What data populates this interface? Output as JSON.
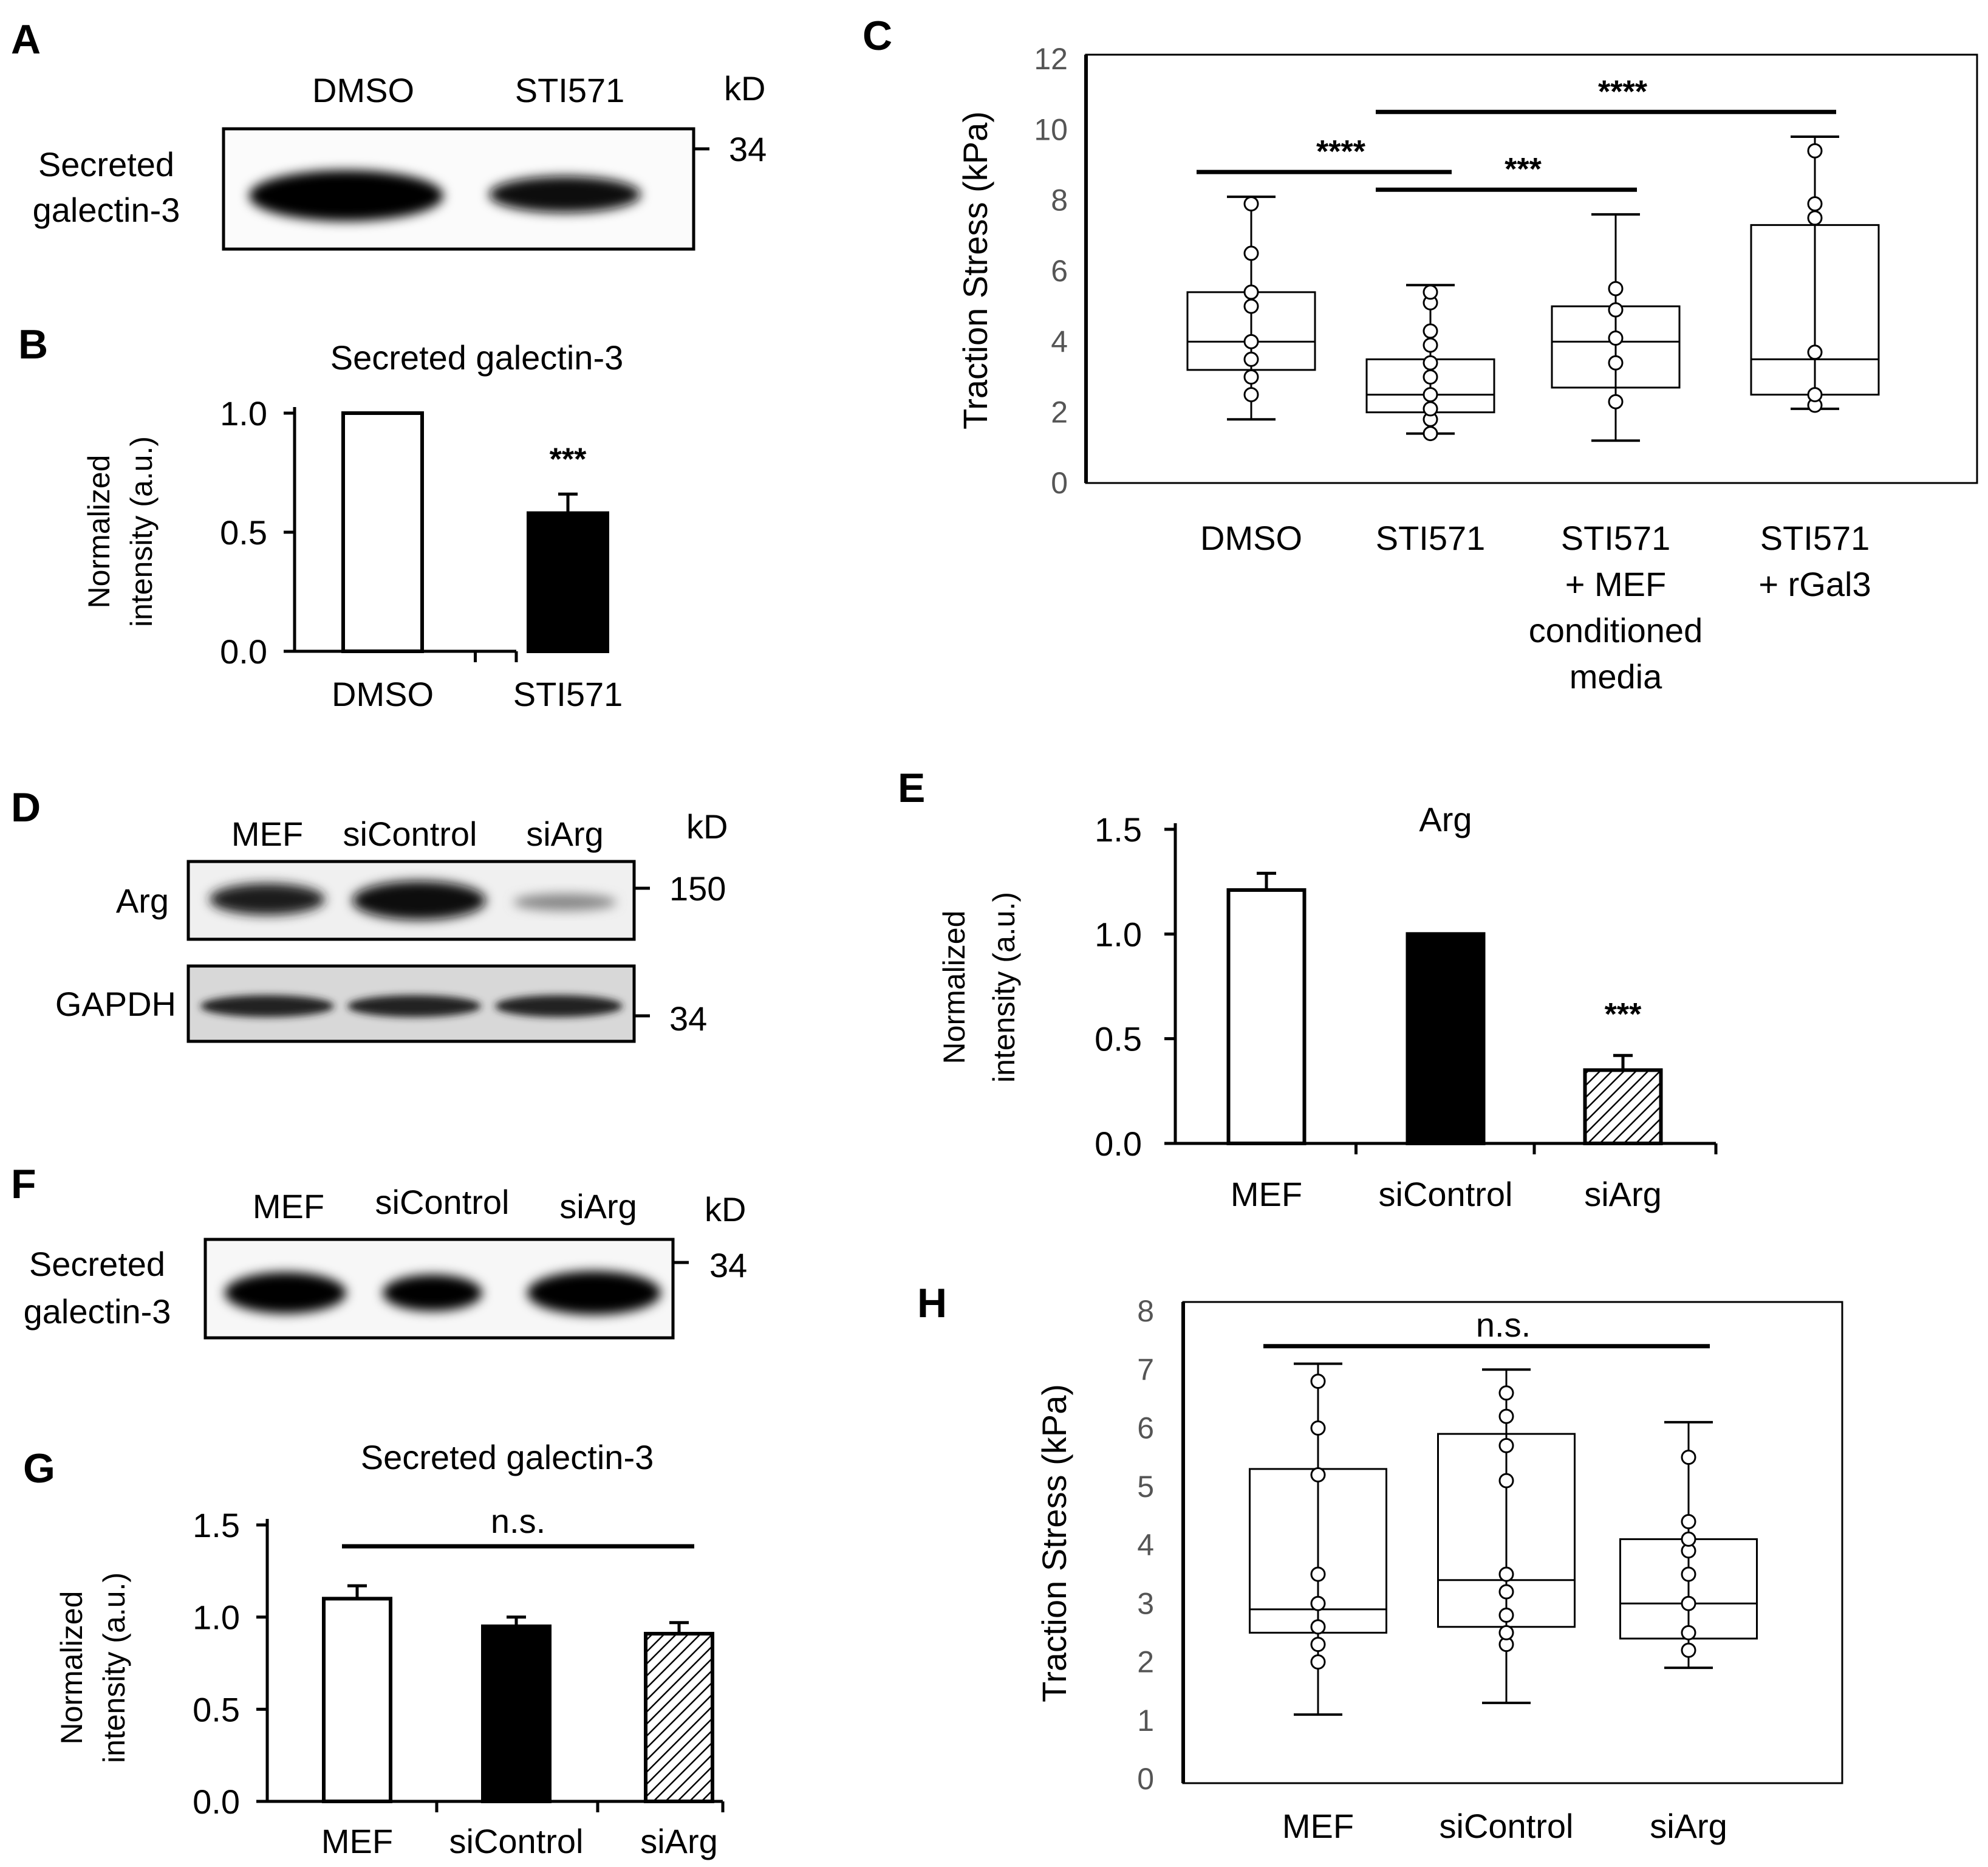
{
  "panels": {
    "A": {
      "letter": "A",
      "lanes": [
        "DMSO",
        "STI571"
      ],
      "unit": "kD",
      "marker": "34",
      "row_label_1": "Secreted",
      "row_label_2": "galectin-3",
      "band_intensity": [
        1.0,
        0.6
      ]
    },
    "D": {
      "letter": "D",
      "lanes": [
        "MEF",
        "siControl",
        "siArg"
      ],
      "unit": "kD",
      "row1_label": "Arg",
      "row1_marker": "150",
      "row2_label": "GAPDH",
      "row2_marker": "34"
    },
    "F": {
      "letter": "F",
      "lanes": [
        "MEF",
        "siControl",
        "siArg"
      ],
      "unit": "kD",
      "marker": "34",
      "row_label_1": "Secreted",
      "row_label_2": "galectin-3"
    }
  },
  "chart_data": [
    {
      "id": "B",
      "letter": "B",
      "type": "bar",
      "title": "Secreted galectin-3",
      "ylabel_1": "Normalized",
      "ylabel_2": "intensity (a.u.)",
      "categories": [
        "DMSO",
        "STI571"
      ],
      "values": [
        1.0,
        0.58
      ],
      "errors": [
        0,
        0.08
      ],
      "fills": [
        "white",
        "black"
      ],
      "ylim": [
        0,
        1.0
      ],
      "yticks": [
        "0.0",
        "0.5",
        "1.0"
      ],
      "annotation": "***"
    },
    {
      "id": "C",
      "letter": "C",
      "type": "box",
      "ylabel": "Traction Stress (kPa)",
      "ylim": [
        0,
        12
      ],
      "yticks": [
        "0",
        "2",
        "4",
        "6",
        "8",
        "10",
        "12"
      ],
      "categories": [
        [
          "DMSO"
        ],
        [
          "STI571"
        ],
        [
          "STI571",
          "+ MEF",
          "conditioned",
          "media"
        ],
        [
          "STI571",
          "+ rGal3"
        ]
      ],
      "boxes": [
        {
          "min": 1.8,
          "q1": 3.2,
          "median": 4.0,
          "q3": 5.4,
          "max": 8.1,
          "points": [
            2.5,
            3.0,
            3.5,
            4.0,
            5.0,
            5.4,
            6.5,
            7.9
          ]
        },
        {
          "min": 1.4,
          "q1": 2.0,
          "median": 2.5,
          "q3": 3.5,
          "max": 5.6,
          "points": [
            1.4,
            1.8,
            2.1,
            2.5,
            3.0,
            3.4,
            3.9,
            4.3,
            5.1,
            5.4
          ]
        },
        {
          "min": 1.2,
          "q1": 2.7,
          "median": 4.0,
          "q3": 5.0,
          "max": 7.6,
          "points": [
            2.3,
            3.4,
            4.1,
            4.9,
            5.5
          ]
        },
        {
          "min": 2.1,
          "q1": 2.5,
          "median": 3.5,
          "q3": 7.3,
          "max": 9.8,
          "points": [
            2.2,
            2.5,
            3.7,
            7.5,
            7.9,
            9.4
          ]
        }
      ],
      "significance": [
        {
          "from": 0,
          "to": 1,
          "y": 8.8,
          "label": "****"
        },
        {
          "from": 1,
          "to": 2,
          "y": 8.3,
          "label": "***"
        },
        {
          "from": 1,
          "to": 3,
          "y": 10.5,
          "label": "****"
        }
      ]
    },
    {
      "id": "E",
      "letter": "E",
      "type": "bar",
      "title": "Arg",
      "ylabel_1": "Normalized",
      "ylabel_2": "intensity (a.u.)",
      "categories": [
        "MEF",
        "siControl",
        "siArg"
      ],
      "values": [
        1.21,
        1.0,
        0.35
      ],
      "errors": [
        0.08,
        0,
        0.07
      ],
      "fills": [
        "white",
        "black",
        "hatch"
      ],
      "ylim": [
        0,
        1.5
      ],
      "yticks": [
        "0.0",
        "0.5",
        "1.0",
        "1.5"
      ],
      "annotation": "***"
    },
    {
      "id": "G",
      "letter": "G",
      "type": "bar",
      "title": "Secreted galectin-3",
      "ylabel_1": "Normalized",
      "ylabel_2": "intensity (a.u.)",
      "categories": [
        "MEF",
        "siControl",
        "siArg"
      ],
      "values": [
        1.1,
        0.95,
        0.91
      ],
      "errors": [
        0.07,
        0.05,
        0.06
      ],
      "fills": [
        "white",
        "black",
        "hatch"
      ],
      "ylim": [
        0,
        1.5
      ],
      "yticks": [
        "0.0",
        "0.5",
        "1.0",
        "1.5"
      ],
      "annotation": "n.s."
    },
    {
      "id": "H",
      "letter": "H",
      "type": "box",
      "ylabel": "Traction Stress (kPa)",
      "ylim": [
        0,
        8
      ],
      "yticks": [
        "0",
        "1",
        "2",
        "3",
        "4",
        "5",
        "6",
        "7",
        "8"
      ],
      "categories": [
        [
          "MEF"
        ],
        [
          "siControl"
        ],
        [
          "siArg"
        ]
      ],
      "boxes": [
        {
          "min": 1.1,
          "q1": 2.5,
          "median": 2.9,
          "q3": 5.3,
          "max": 7.1,
          "points": [
            2.0,
            2.3,
            2.6,
            3.0,
            3.5,
            5.2,
            6.0,
            6.8
          ]
        },
        {
          "min": 1.3,
          "q1": 2.6,
          "median": 3.4,
          "q3": 5.9,
          "max": 7.0,
          "points": [
            2.3,
            2.5,
            2.8,
            3.2,
            3.5,
            5.1,
            5.7,
            6.2,
            6.6
          ]
        },
        {
          "min": 1.9,
          "q1": 2.4,
          "median": 3.0,
          "q3": 4.1,
          "max": 6.1,
          "points": [
            2.2,
            2.5,
            3.0,
            3.5,
            3.9,
            4.1,
            4.4,
            5.5
          ]
        }
      ],
      "significance": [
        {
          "from": 0,
          "to": 2,
          "y": 7.4,
          "label": "n.s."
        }
      ]
    }
  ]
}
